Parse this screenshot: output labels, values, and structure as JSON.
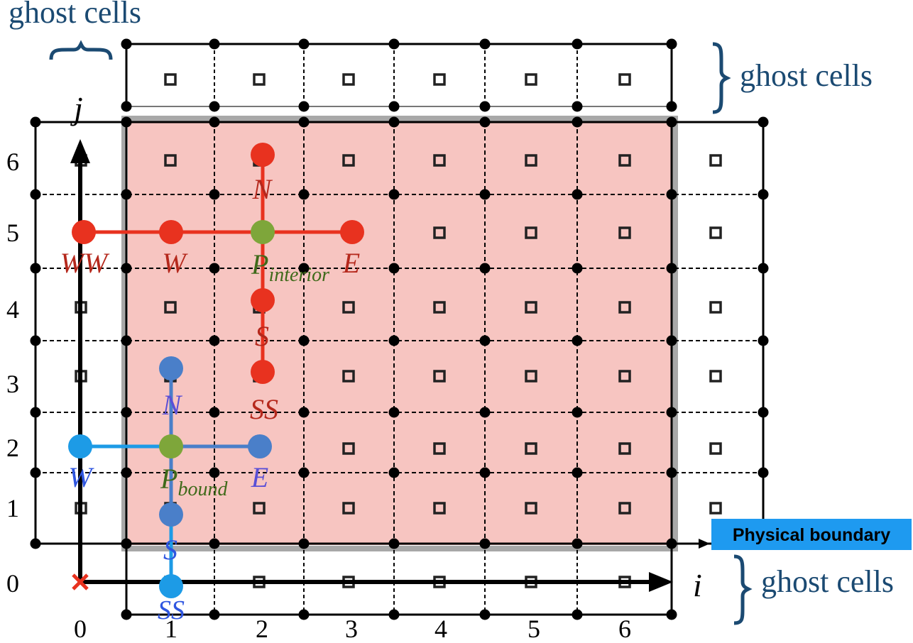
{
  "labels": {
    "ghost_top_left": "ghost cells",
    "ghost_top_right": "ghost cells",
    "ghost_bottom_right": "ghost cells",
    "axis_i": "i",
    "axis_j": "j",
    "physical_boundary": "Physical boundary"
  },
  "x_ticks": [
    "0",
    "1",
    "2",
    "3",
    "4",
    "5",
    "6"
  ],
  "y_ticks": [
    "0",
    "1",
    "2",
    "3",
    "4",
    "5",
    "6"
  ],
  "stencil_interior": {
    "N": "N",
    "S": "S",
    "SS": "SS",
    "W": "W",
    "WW": "WW",
    "E": "E",
    "P": "P",
    "P_sub": "interior"
  },
  "stencil_bound": {
    "N": "N",
    "S": "S",
    "SS": "SS",
    "W": "W",
    "E": "E",
    "P": "P",
    "P_sub": "bound"
  },
  "colors": {
    "interior_fill": "#f7c5c1",
    "red": "#e8321f",
    "red_label": "#b5281c",
    "blue_light": "#1d9be6",
    "blue_mid": "#4a7fc9",
    "blue_label": "#2f56e0",
    "green": "#7ea63a",
    "green_label": "#3f6a1a",
    "navy": "#1b4a72",
    "badge": "#1e9af0"
  }
}
